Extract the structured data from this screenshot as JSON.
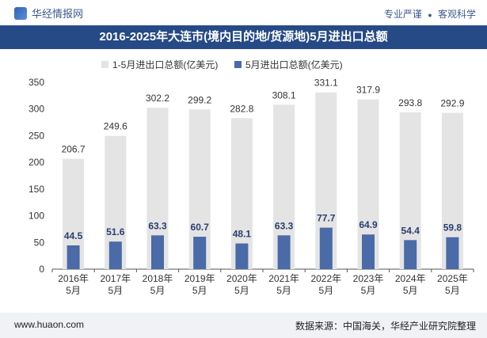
{
  "header": {
    "brand": "华经情报网",
    "tags": [
      "专业严谨",
      "客观科学"
    ],
    "separator": "●"
  },
  "title": "2016-2025年大连市(境内目的地/货源地)5月进出口总额",
  "footer": {
    "url": "www.huaon.com",
    "source": "数据来源：中国海关，华经产业研究院整理"
  },
  "colors": {
    "title_bg": "#254a86",
    "series_total": "#e4e4e4",
    "series_may": "#4a6aa8"
  },
  "chart_data": {
    "type": "bar",
    "categories": [
      "2016年\n5月",
      "2017年\n5月",
      "2018年\n5月",
      "2019年\n5月",
      "2020年\n5月",
      "2021年\n5月",
      "2022年\n5月",
      "2023年\n5月",
      "2024年\n5月",
      "2025年\n5月"
    ],
    "series": [
      {
        "name": "1-5月进出口总额(亿美元)",
        "values": [
          206.7,
          249.6,
          302.2,
          299.2,
          282.8,
          308.1,
          331.1,
          317.9,
          293.8,
          292.9
        ]
      },
      {
        "name": "5月进出口总额(亿美元)",
        "values": [
          44.5,
          51.6,
          63.3,
          60.7,
          48.1,
          63.3,
          77.7,
          64.9,
          54.4,
          59.8
        ]
      }
    ],
    "yticks": [
      0,
      50,
      100,
      150,
      200,
      250,
      300,
      350
    ],
    "ylim": [
      0,
      350
    ],
    "legend": "top-center",
    "grid": false
  }
}
